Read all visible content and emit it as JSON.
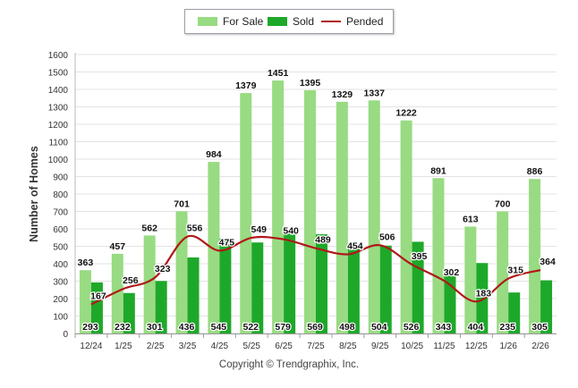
{
  "chart_data": {
    "type": "bar",
    "title": "",
    "xlabel": "",
    "ylabel": "Number of Homes",
    "ylim": [
      0,
      1600
    ],
    "yticks": [
      0,
      100,
      200,
      300,
      400,
      500,
      600,
      700,
      800,
      900,
      1000,
      1100,
      1200,
      1300,
      1400,
      1500,
      1600
    ],
    "grid": true,
    "legend_position": "top-center",
    "categories": [
      "12/24",
      "1/25",
      "2/25",
      "3/25",
      "4/25",
      "5/25",
      "6/25",
      "7/25",
      "8/25",
      "9/25",
      "10/25",
      "11/25",
      "12/25",
      "1/26",
      "2/26"
    ],
    "series": [
      {
        "name": "For Sale",
        "type": "bar",
        "color": "#98db82",
        "values": [
          363,
          457,
          562,
          701,
          984,
          1379,
          1451,
          1395,
          1329,
          1337,
          1222,
          891,
          613,
          700,
          886
        ]
      },
      {
        "name": "Sold",
        "type": "bar",
        "color": "#1ea82a",
        "values": [
          293,
          232,
          301,
          436,
          545,
          522,
          579,
          569,
          498,
          504,
          526,
          343,
          404,
          235,
          305
        ]
      },
      {
        "name": "Pended",
        "type": "line",
        "color": "#b01818",
        "values": [
          167,
          256,
          323,
          556,
          475,
          549,
          540,
          489,
          454,
          506,
          395,
          302,
          183,
          315,
          364
        ]
      }
    ]
  },
  "copyright": "Copyright © Trendgraphix, Inc."
}
